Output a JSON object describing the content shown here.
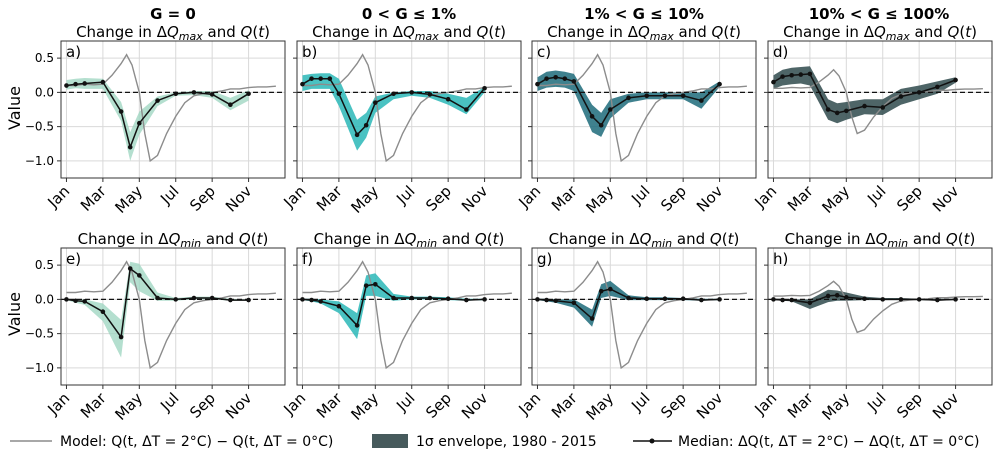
{
  "figure": {
    "column_titles": [
      "G = 0",
      "0 < G ≤ 1%",
      "1% < G ≤ 10%",
      "10% < G ≤ 100%"
    ],
    "ylabel": "Value",
    "month_ticks": [
      "Jan",
      "Mar",
      "May",
      "Jul",
      "Sep",
      "Nov"
    ],
    "ytick_labels": [
      "0.5",
      "0.0",
      "−0.5",
      "−1.0"
    ],
    "colors": {
      "col0": "#9bd4bf",
      "col1": "#2ab7b7",
      "col2": "#1d6b7a",
      "col3": "#2f4a4c",
      "model": "#8c8c8c",
      "median": "#111111",
      "grid": "#d9d9d9"
    }
  },
  "legend": {
    "model": "Model: Q(t, ΔT = 2°C) − Q(t, ΔT = 0°C)",
    "envelope": "1σ envelope, 1980 - 2015",
    "median": "Median: ΔQ(t, ΔT = 2°C) − ΔQ(t, ΔT = 0°C)"
  },
  "chart_data": [
    {
      "type": "line",
      "panel": "a)",
      "title": "Change in ΔQmax and Q(t)",
      "group": "G = 0",
      "ylim": [
        -1.25,
        0.75
      ],
      "xlim": [
        0.7,
        13.0
      ],
      "median": {
        "x": [
          1,
          1.5,
          2,
          3,
          4,
          4.5,
          5,
          6,
          7,
          8,
          9,
          10,
          11
        ],
        "y": [
          0.1,
          0.12,
          0.13,
          0.15,
          -0.28,
          -0.8,
          -0.45,
          -0.12,
          -0.02,
          0.0,
          -0.03,
          -0.18,
          -0.02
        ]
      },
      "upper": [
        0.18,
        0.2,
        0.21,
        0.2,
        -0.14,
        -0.58,
        -0.28,
        -0.06,
        0.0,
        0.02,
        0.02,
        -0.08,
        0.03
      ],
      "lower": [
        0.04,
        0.06,
        0.05,
        0.05,
        -0.42,
        -1.0,
        -0.62,
        -0.2,
        -0.05,
        -0.04,
        -0.08,
        -0.26,
        -0.12
      ]
    },
    {
      "type": "line",
      "panel": "b)",
      "title": "Change in ΔQmax and Q(t)",
      "group": "0 < G ≤ 1%",
      "ylim": [
        -1.25,
        0.75
      ],
      "xlim": [
        0.7,
        13.0
      ],
      "median": {
        "x": [
          1,
          1.5,
          2,
          2.5,
          3,
          4,
          4.5,
          5,
          6,
          7,
          8,
          9,
          10,
          11
        ],
        "y": [
          0.12,
          0.2,
          0.2,
          0.2,
          -0.02,
          -0.62,
          -0.48,
          -0.15,
          -0.02,
          0.0,
          -0.03,
          -0.1,
          -0.25,
          0.06
        ]
      },
      "upper": [
        0.25,
        0.27,
        0.28,
        0.28,
        0.2,
        -0.4,
        -0.3,
        -0.06,
        0.0,
        0.02,
        0.02,
        -0.02,
        -0.08,
        0.08
      ],
      "lower": [
        0.02,
        0.05,
        0.05,
        0.05,
        -0.2,
        -0.85,
        -0.66,
        -0.3,
        -0.1,
        -0.05,
        -0.08,
        -0.18,
        -0.32,
        0.0
      ]
    },
    {
      "type": "line",
      "panel": "c)",
      "title": "Change in ΔQmax and Q(t)",
      "group": "1% < G ≤ 10%",
      "ylim": [
        -1.25,
        0.75
      ],
      "xlim": [
        0.7,
        13.0
      ],
      "median": {
        "x": [
          1,
          1.5,
          2,
          2.5,
          3,
          4,
          4.5,
          5,
          6,
          7,
          8,
          9,
          10,
          11
        ],
        "y": [
          0.12,
          0.2,
          0.22,
          0.2,
          0.16,
          -0.35,
          -0.48,
          -0.25,
          -0.08,
          -0.05,
          -0.05,
          -0.05,
          -0.12,
          0.12
        ]
      },
      "upper": [
        0.22,
        0.3,
        0.32,
        0.3,
        0.27,
        -0.18,
        -0.3,
        -0.1,
        -0.02,
        0.0,
        0.0,
        0.0,
        0.0,
        0.16
      ],
      "lower": [
        0.02,
        0.07,
        0.08,
        0.07,
        0.02,
        -0.58,
        -0.65,
        -0.38,
        -0.15,
        -0.1,
        -0.1,
        -0.1,
        -0.24,
        0.08
      ]
    },
    {
      "type": "line",
      "panel": "d)",
      "title": "Change in ΔQmax and Q(t)",
      "group": "10% < G ≤ 100%",
      "ylim": [
        -1.25,
        0.75
      ],
      "xlim": [
        0.7,
        13.0
      ],
      "median": {
        "x": [
          1,
          1.5,
          2,
          2.5,
          3,
          4,
          4.5,
          5,
          6,
          7,
          8,
          9,
          10,
          11
        ],
        "y": [
          0.15,
          0.23,
          0.25,
          0.26,
          0.27,
          -0.25,
          -0.3,
          -0.27,
          -0.2,
          -0.22,
          -0.06,
          0.0,
          0.08,
          0.18
        ]
      },
      "upper": [
        0.25,
        0.33,
        0.36,
        0.37,
        0.38,
        -0.1,
        -0.16,
        -0.14,
        -0.1,
        -0.1,
        0.05,
        0.1,
        0.16,
        0.22
      ],
      "lower": [
        0.05,
        0.1,
        0.12,
        0.13,
        0.1,
        -0.4,
        -0.45,
        -0.4,
        -0.32,
        -0.33,
        -0.18,
        -0.1,
        -0.02,
        0.14
      ]
    },
    {
      "type": "line",
      "panel": "e)",
      "title": "Change in ΔQmin and Q(t)",
      "group": "G = 0",
      "ylim": [
        -1.25,
        0.75
      ],
      "xlim": [
        0.7,
        13.0
      ],
      "median": {
        "x": [
          1,
          1.5,
          2,
          3,
          4,
          4.5,
          5,
          6,
          7,
          8,
          9,
          10,
          11
        ],
        "y": [
          0.0,
          -0.02,
          -0.03,
          -0.18,
          -0.55,
          0.45,
          0.35,
          0.02,
          0.0,
          0.02,
          0.02,
          -0.01,
          -0.01
        ]
      },
      "upper": [
        0.01,
        0.0,
        0.0,
        -0.06,
        -0.3,
        0.55,
        0.52,
        0.1,
        0.02,
        0.04,
        0.04,
        0.01,
        0.0
      ],
      "lower": [
        -0.01,
        -0.05,
        -0.08,
        -0.32,
        -0.85,
        0.25,
        0.12,
        -0.02,
        -0.02,
        0.0,
        0.0,
        -0.02,
        -0.02
      ]
    },
    {
      "type": "line",
      "panel": "f)",
      "title": "Change in ΔQmin and Q(t)",
      "group": "0 < G ≤ 1%",
      "ylim": [
        -1.25,
        0.75
      ],
      "xlim": [
        0.7,
        13.0
      ],
      "median": {
        "x": [
          1,
          1.5,
          2,
          3,
          4,
          4.5,
          5,
          6,
          7,
          8,
          9,
          10,
          11
        ],
        "y": [
          0.0,
          -0.01,
          -0.03,
          -0.1,
          -0.38,
          0.2,
          0.22,
          0.02,
          0.02,
          0.02,
          0.01,
          -0.01,
          0.0
        ]
      },
      "upper": [
        0.01,
        0.01,
        0.0,
        -0.03,
        -0.2,
        0.35,
        0.38,
        0.08,
        0.04,
        0.04,
        0.03,
        0.01,
        0.01
      ],
      "lower": [
        -0.01,
        -0.03,
        -0.06,
        -0.2,
        -0.58,
        0.05,
        0.05,
        -0.02,
        0.0,
        0.0,
        -0.01,
        -0.02,
        -0.01
      ]
    },
    {
      "type": "line",
      "panel": "g)",
      "title": "Change in ΔQmin and Q(t)",
      "group": "1% < G ≤ 10%",
      "ylim": [
        -1.25,
        0.75
      ],
      "xlim": [
        0.7,
        13.0
      ],
      "median": {
        "x": [
          1,
          1.5,
          2,
          3,
          4,
          4.5,
          5,
          6,
          7,
          8,
          9,
          10,
          11
        ],
        "y": [
          0.0,
          -0.01,
          -0.02,
          -0.05,
          -0.28,
          0.12,
          0.15,
          0.02,
          0.01,
          0.01,
          0.01,
          -0.01,
          0.0
        ]
      },
      "upper": [
        0.01,
        0.01,
        0.0,
        0.0,
        -0.15,
        0.22,
        0.27,
        0.06,
        0.03,
        0.03,
        0.02,
        0.01,
        0.01
      ],
      "lower": [
        -0.01,
        -0.03,
        -0.05,
        -0.12,
        -0.4,
        0.02,
        0.05,
        -0.01,
        -0.01,
        -0.01,
        -0.01,
        -0.02,
        -0.01
      ]
    },
    {
      "type": "line",
      "panel": "h)",
      "title": "Change in ΔQmin and Q(t)",
      "group": "10% < G ≤ 100%",
      "ylim": [
        -1.25,
        0.75
      ],
      "xlim": [
        0.7,
        13.0
      ],
      "median": {
        "x": [
          1,
          1.5,
          2,
          3,
          4,
          4.5,
          5,
          6,
          7,
          8,
          9,
          10,
          11
        ],
        "y": [
          0.0,
          -0.01,
          -0.01,
          -0.05,
          0.05,
          0.06,
          0.03,
          0.01,
          0.0,
          0.0,
          0.0,
          -0.01,
          0.0
        ]
      },
      "upper": [
        0.01,
        0.01,
        0.0,
        0.0,
        0.14,
        0.13,
        0.1,
        0.04,
        0.02,
        0.02,
        0.01,
        0.01,
        0.01
      ],
      "lower": [
        -0.01,
        -0.02,
        -0.03,
        -0.14,
        -0.04,
        -0.02,
        -0.02,
        -0.01,
        -0.01,
        -0.01,
        -0.01,
        -0.02,
        -0.01
      ]
    }
  ],
  "model_series": {
    "comment_units": "x in months (Jan = 1), y in value units",
    "top": {
      "x": [
        1,
        1.5,
        2,
        2.5,
        3,
        3.5,
        4,
        4.3,
        4.6,
        5,
        5.3,
        5.6,
        6,
        6.5,
        7,
        7.5,
        8,
        8.5,
        9,
        9.5,
        10,
        10.5,
        11,
        11.5,
        12,
        12.5
      ],
      "y": [
        0.1,
        0.1,
        0.12,
        0.11,
        0.12,
        0.25,
        0.42,
        0.55,
        0.4,
        0.0,
        -0.6,
        -1.0,
        -0.92,
        -0.6,
        -0.35,
        -0.15,
        -0.05,
        -0.02,
        0.0,
        0.02,
        0.05,
        0.05,
        0.07,
        0.08,
        0.08,
        0.09
      ]
    },
    "bottom": {
      "x": [
        1,
        1.5,
        2,
        2.5,
        3,
        3.5,
        4,
        4.3,
        4.6,
        5,
        5.3,
        5.6,
        6,
        6.5,
        7,
        7.5,
        8,
        8.5,
        9,
        9.5,
        10,
        10.5,
        11,
        11.5,
        12,
        12.5
      ],
      "y": [
        0.1,
        0.1,
        0.12,
        0.11,
        0.12,
        0.25,
        0.42,
        0.55,
        0.4,
        0.0,
        -0.6,
        -1.0,
        -0.92,
        -0.6,
        -0.35,
        -0.15,
        -0.05,
        -0.02,
        0.0,
        0.02,
        0.05,
        0.05,
        0.07,
        0.08,
        0.08,
        0.09
      ]
    }
  }
}
